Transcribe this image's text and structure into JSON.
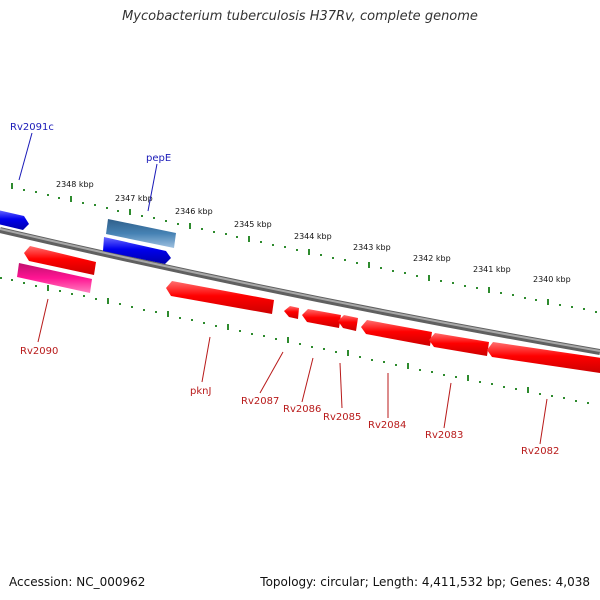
{
  "title": "Mycobacterium tuberculosis H37Rv, complete genome",
  "footer": {
    "accession_label": "Accession:",
    "accession": "NC_000962",
    "topology_label": "Topology:",
    "topology": "circular",
    "length_label": "Length:",
    "length": "4,411,532 bp",
    "genes_label": "Genes:",
    "genes": "4,038"
  },
  "kbp_ticks": [
    "2348 kbp",
    "2347 kbp",
    "2346 kbp",
    "2345 kbp",
    "2344 kbp",
    "2343 kbp",
    "2342 kbp",
    "2341 kbp",
    "2340 kbp"
  ],
  "genes_forward": [
    {
      "label": "Rv2091c",
      "color": "#1a1ab8"
    },
    {
      "label": "pepE",
      "color": "#1a1ab8"
    }
  ],
  "genes_reverse": [
    {
      "label": "Rv2090",
      "color": "#b81a1a"
    },
    {
      "label": "pknJ",
      "color": "#b81a1a"
    },
    {
      "label": "Rv2087",
      "color": "#b81a1a"
    },
    {
      "label": "Rv2086",
      "color": "#b81a1a"
    },
    {
      "label": "Rv2085",
      "color": "#b81a1a"
    },
    {
      "label": "Rv2084",
      "color": "#b81a1a"
    },
    {
      "label": "Rv2083",
      "color": "#b81a1a"
    },
    {
      "label": "Rv2082",
      "color": "#b81a1a"
    }
  ],
  "colors": {
    "backbone": "#808080",
    "tick": "#2e8b2e",
    "cds_red": "#ff0000",
    "cds_blue": "#0000ee",
    "cds_steel": "#4682b4",
    "cds_pink": "#ff1493"
  }
}
